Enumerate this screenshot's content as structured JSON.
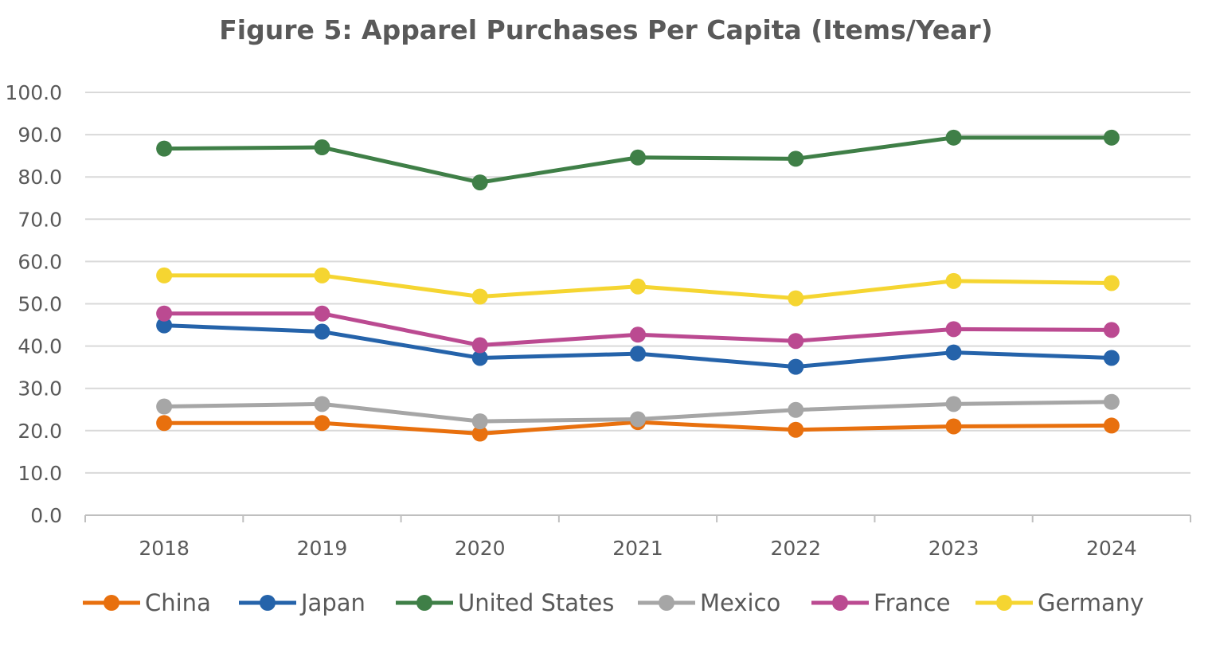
{
  "chart_data": {
    "type": "line",
    "title": "Figure 5:  Apparel Purchases Per Capita (Items/Year)",
    "xlabel": "",
    "ylabel": "",
    "categories": [
      "2018",
      "2019",
      "2020",
      "2021",
      "2022",
      "2023",
      "2024"
    ],
    "ylim": [
      0,
      100
    ],
    "ytick_step": 10,
    "ytick_labels": [
      "0.0",
      "10.0",
      "20.0",
      "30.0",
      "40.0",
      "50.0",
      "60.0",
      "70.0",
      "80.0",
      "90.0",
      "100.0"
    ],
    "grid": true,
    "legend_position": "bottom",
    "series": [
      {
        "name": "China",
        "color": "#E8700E",
        "values": [
          21.8,
          21.8,
          19.3,
          22.0,
          20.2,
          21.0,
          21.2
        ]
      },
      {
        "name": "Japan",
        "color": "#2563AA",
        "values": [
          44.9,
          43.4,
          37.2,
          38.2,
          35.1,
          38.5,
          37.2
        ]
      },
      {
        "name": "United States",
        "color": "#3F7F47",
        "values": [
          86.7,
          87.0,
          78.7,
          84.6,
          84.3,
          89.3,
          89.3
        ]
      },
      {
        "name": "Mexico",
        "color": "#A6A6A6",
        "values": [
          25.7,
          26.3,
          22.2,
          22.7,
          24.9,
          26.3,
          26.8
        ]
      },
      {
        "name": "France",
        "color": "#BB4A91",
        "values": [
          47.7,
          47.7,
          40.2,
          42.7,
          41.2,
          44.0,
          43.8
        ]
      },
      {
        "name": "Germany",
        "color": "#F5D531",
        "values": [
          56.7,
          56.7,
          51.7,
          54.1,
          51.3,
          55.4,
          54.9
        ]
      }
    ]
  }
}
